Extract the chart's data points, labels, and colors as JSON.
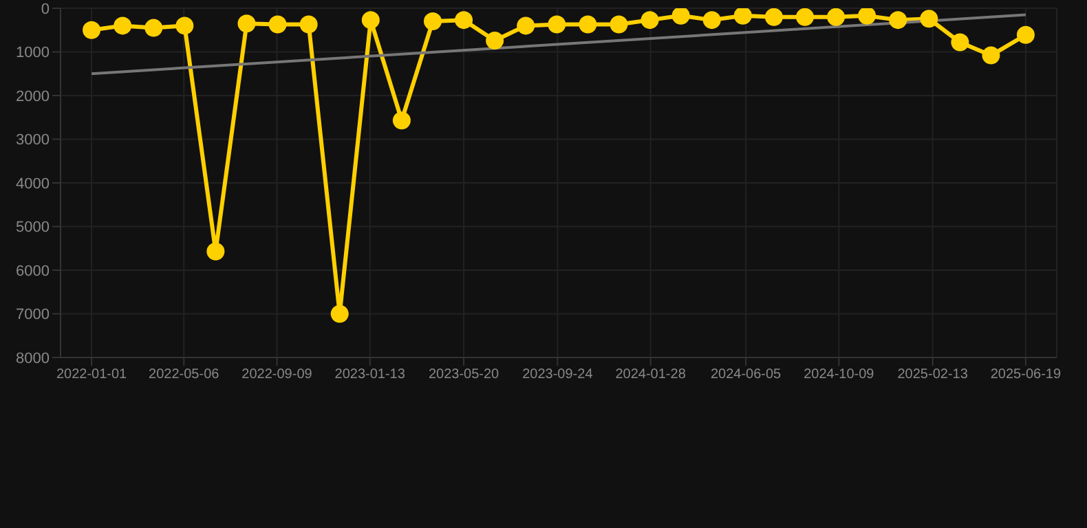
{
  "chart_data": {
    "type": "line",
    "x": [
      "2022-01-01",
      "2022-02-12",
      "2022-03-26",
      "2022-05-07",
      "2022-06-18",
      "2022-07-30",
      "2022-09-10",
      "2022-10-22",
      "2022-12-03",
      "2023-01-14",
      "2023-02-25",
      "2023-04-08",
      "2023-05-20",
      "2023-07-01",
      "2023-08-12",
      "2023-09-23",
      "2023-11-04",
      "2023-12-16",
      "2024-01-27",
      "2024-03-09",
      "2024-04-20",
      "2024-06-01",
      "2024-07-13",
      "2024-08-24",
      "2024-10-05",
      "2024-11-16",
      "2024-12-28",
      "2025-02-08",
      "2025-03-22",
      "2025-05-03",
      "2025-06-19"
    ],
    "series": [
      {
        "color": "#ffd000",
        "marker": "circle",
        "values": [
          500,
          400,
          450,
          400,
          5570,
          350,
          370,
          370,
          7000,
          270,
          2570,
          300,
          270,
          740,
          400,
          370,
          370,
          370,
          270,
          170,
          270,
          170,
          200,
          200,
          200,
          170,
          270,
          240,
          780,
          1080,
          610
        ]
      },
      {
        "type": "line",
        "color": "#777777",
        "marker": "none",
        "x": [
          "2022-01-01",
          "2025-06-19"
        ],
        "values": [
          1500,
          150
        ]
      }
    ],
    "xlim": [
      "2021-11-20",
      "2025-07-31"
    ],
    "xticks": [
      "2022-01-01",
      "2022-05-06",
      "2022-09-09",
      "2023-01-13",
      "2023-05-20",
      "2023-09-24",
      "2024-01-28",
      "2024-06-05",
      "2024-10-09",
      "2025-02-13",
      "2025-06-19"
    ],
    "ylim": [
      8000,
      0
    ],
    "yticks": [
      0,
      1000,
      2000,
      3000,
      4000,
      5000,
      6000,
      7000,
      8000
    ],
    "grid": true
  }
}
